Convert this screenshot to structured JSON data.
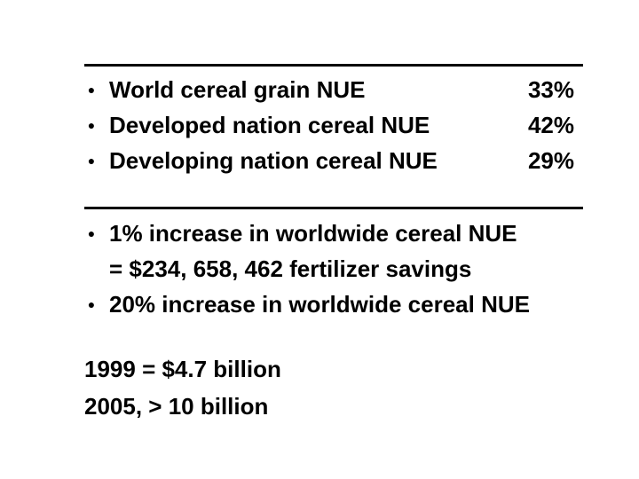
{
  "nue_table": {
    "rows": [
      {
        "bullet": "●",
        "label": "World cereal grain NUE",
        "value": "33%"
      },
      {
        "bullet": "●",
        "label": "Developed nation cereal NUE",
        "value": "42%"
      },
      {
        "bullet": "●",
        "label": "Developing nation cereal NUE",
        "value": "29%"
      }
    ]
  },
  "increase_points": [
    {
      "bullet": "●",
      "line1": "1% increase in worldwide cereal NUE",
      "line2": "= $234, 658, 462 fertilizer savings"
    },
    {
      "bullet": "●",
      "line1": "20% increase in worldwide cereal NUE"
    }
  ],
  "totals": {
    "line1": "1999  = $4.7 billion",
    "line2": "2005, > 10 billion"
  }
}
